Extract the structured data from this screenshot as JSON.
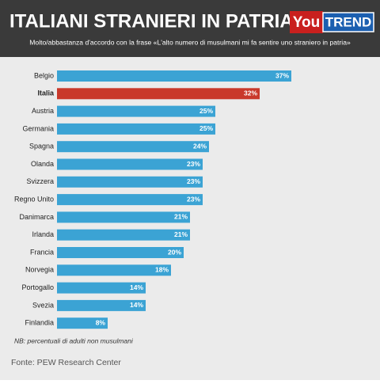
{
  "chart_data": {
    "type": "bar",
    "title": "ITALIANI STRANIERI IN PATRIA?",
    "logo_text": [
      "You",
      "TREND"
    ],
    "subtitle": "Molto/abbastanza d'accordo con la frase «L'alto numero di musulmani mi fa sentire uno straniero in patria»",
    "categories": [
      "Belgio",
      "Italia",
      "Austria",
      "Germania",
      "Spagna",
      "Olanda",
      "Svizzera",
      "Regno Unito",
      "Danimarca",
      "Irlanda",
      "Francia",
      "Norvegia",
      "Portogallo",
      "Svezia",
      "Finlandia"
    ],
    "values": [
      37,
      32,
      25,
      25,
      24,
      23,
      23,
      23,
      21,
      21,
      20,
      18,
      14,
      14,
      8
    ],
    "value_labels": [
      "37%",
      "32%",
      "25%",
      "25%",
      "24%",
      "23%",
      "23%",
      "23%",
      "21%",
      "21%",
      "20%",
      "18%",
      "14%",
      "14%",
      "8%"
    ],
    "color": "#3ba3d4",
    "colors": [
      "#3ba3d4",
      "#c9392b",
      "#3ba3d4",
      "#3ba3d4",
      "#3ba3d4",
      "#3ba3d4",
      "#3ba3d4",
      "#3ba3d4",
      "#3ba3d4",
      "#3ba3d4",
      "#3ba3d4",
      "#3ba3d4",
      "#3ba3d4",
      "#3ba3d4",
      "#3ba3d4"
    ],
    "note": "NB: percentuali di adulti non musulmani",
    "source": "Fonte: PEW Research Center"
  }
}
